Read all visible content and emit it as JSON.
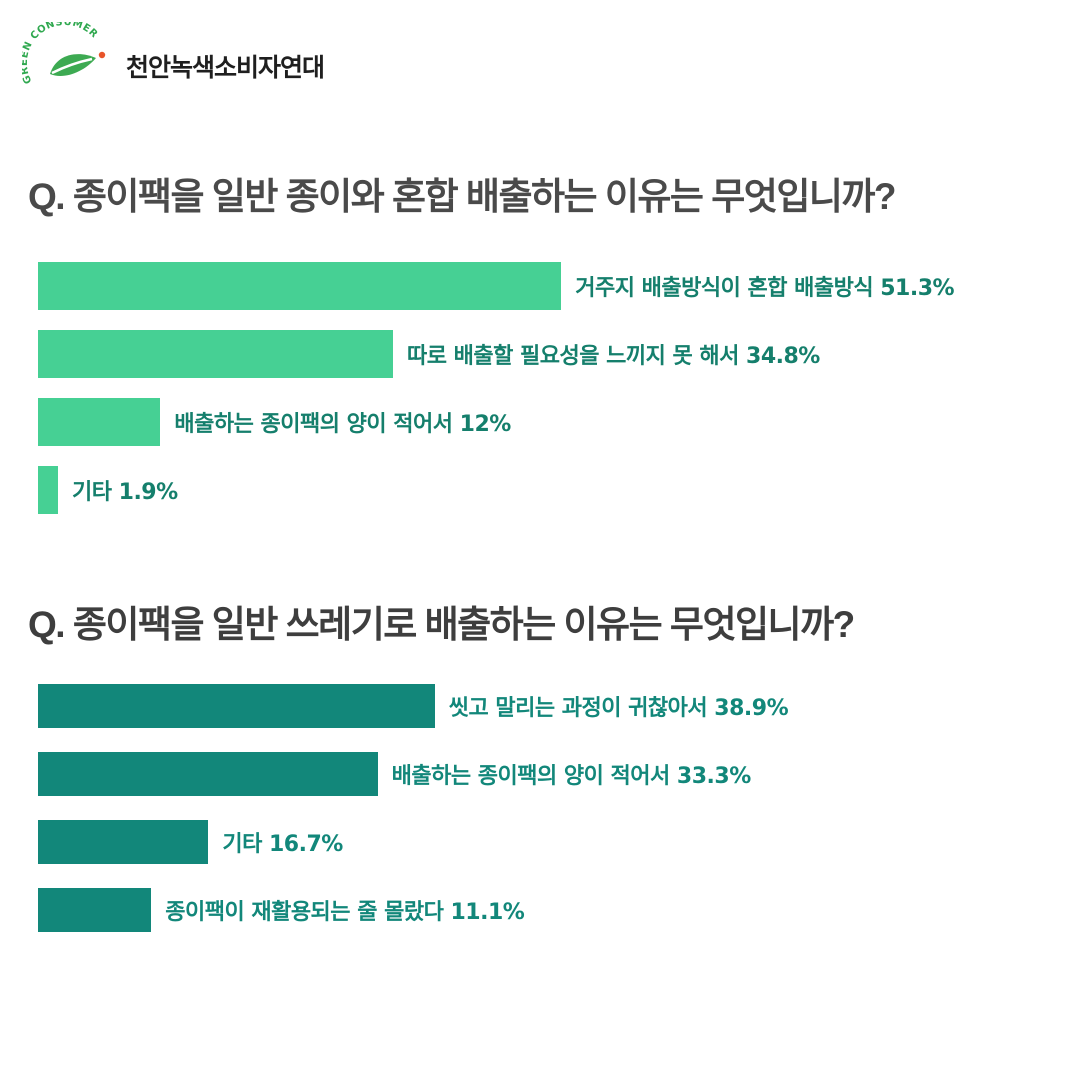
{
  "logo": {
    "ring_text": "GREEN CONSUMER",
    "name": "천안녹색소비자연대"
  },
  "colors": {
    "chart1_bar": "#46d094",
    "chart1_label": "#157f6c",
    "chart2_bar": "#12877a",
    "chart2_label": "#12877a",
    "question_text": "#4a4a4a"
  },
  "chart_data": [
    {
      "type": "bar",
      "orientation": "horizontal",
      "title": "Q. 종이팩을 일반 종이와 혼합 배출하는 이유는 무엇입니까?",
      "categories": [
        "거주지 배출방식이 혼합 배출방식",
        "따로 배출할 필요성을 느끼지 못 해서",
        "배출하는 종이팩의 양이 적어서",
        "기타"
      ],
      "values": [
        51.3,
        34.8,
        12,
        1.9
      ],
      "value_labels": [
        "51.3%",
        "34.8%",
        "12%",
        "1.9%"
      ],
      "unit": "%",
      "grid": false,
      "legend": "none"
    },
    {
      "type": "bar",
      "orientation": "horizontal",
      "title": "Q. 종이팩을 일반 쓰레기로 배출하는 이유는 무엇입니까?",
      "categories": [
        "씻고 말리는 과정이 귀찮아서",
        "배출하는 종이팩의 양이 적어서",
        "기타",
        "종이팩이 재활용되는 줄 몰랐다"
      ],
      "values": [
        38.9,
        33.3,
        16.7,
        11.1
      ],
      "value_labels": [
        "38.9%",
        "33.3%",
        "16.7%",
        "11.1%"
      ],
      "unit": "%",
      "grid": false,
      "legend": "none"
    }
  ]
}
